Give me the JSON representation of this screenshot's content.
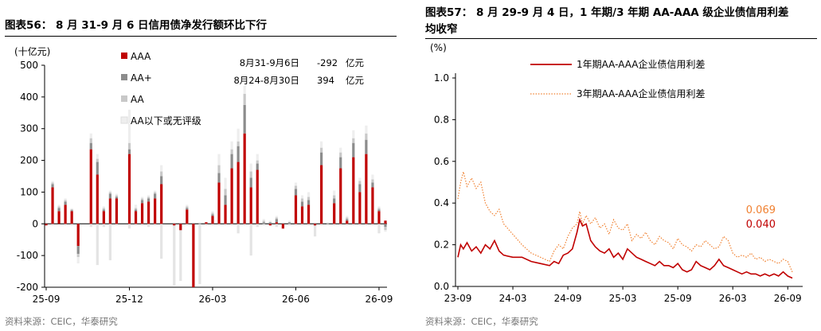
{
  "left": {
    "title": "图表56： 8 月 31-9 月 6 日信用债净发行额环比下行",
    "source": "资料来源：CEIC，华泰研究",
    "chart_data": {
      "type": "bar",
      "stacked": true,
      "y_unit": "(十亿元)",
      "ylim": [
        -200,
        500
      ],
      "yticks": [
        "500",
        "400",
        "300",
        "200",
        "100",
        "0",
        "-100",
        "-200"
      ],
      "ytick_values": [
        500,
        400,
        300,
        200,
        100,
        0,
        -100,
        -200
      ],
      "x_tick_labels": [
        "25-09",
        "25-12",
        "26-03",
        "26-06",
        "26-09"
      ],
      "x_tick_weeks": [
        0,
        13,
        26,
        39,
        52
      ],
      "legend": [
        {
          "name": "AAA",
          "color": "#c00000"
        },
        {
          "name": "AA+",
          "color": "#8c8c8c"
        },
        {
          "name": "AA",
          "color": "#c8c8c8"
        },
        {
          "name": "AA以下或无评级",
          "color": "#eeeeee"
        }
      ],
      "annotations": [
        {
          "period": "8月31-9月6日",
          "value": "-292",
          "unit": "亿元"
        },
        {
          "period": "8月24-8月30日",
          "value": "394",
          "unit": "亿元"
        }
      ],
      "series": [
        {
          "name": "AAA",
          "color": "#c00000",
          "values": [
            -5,
            115,
            40,
            60,
            40,
            -70,
            0,
            235,
            155,
            40,
            80,
            80,
            0,
            220,
            40,
            65,
            70,
            80,
            125,
            0,
            -5,
            -20,
            45,
            -200,
            0,
            5,
            25,
            130,
            60,
            175,
            195,
            285,
            115,
            170,
            0,
            -5,
            5,
            -15,
            0,
            90,
            55,
            60,
            -5,
            185,
            0,
            65,
            175,
            10,
            210,
            100,
            220,
            115,
            40,
            10
          ]
        },
        {
          "name": "AA+",
          "color": "#8c8c8c",
          "values": [
            0,
            10,
            10,
            10,
            3,
            -25,
            0,
            20,
            40,
            5,
            15,
            5,
            0,
            15,
            5,
            10,
            10,
            15,
            25,
            0,
            0,
            0,
            5,
            0,
            0,
            0,
            5,
            30,
            30,
            45,
            50,
            90,
            30,
            20,
            5,
            5,
            10,
            0,
            5,
            20,
            15,
            15,
            0,
            40,
            0,
            15,
            35,
            5,
            45,
            25,
            45,
            15,
            5,
            -10
          ]
        },
        {
          "name": "AA",
          "color": "#c8c8c8",
          "values": [
            0,
            5,
            5,
            5,
            3,
            -10,
            0,
            15,
            10,
            5,
            5,
            5,
            0,
            20,
            5,
            5,
            5,
            5,
            15,
            0,
            0,
            0,
            5,
            0,
            0,
            0,
            5,
            25,
            20,
            15,
            15,
            35,
            20,
            10,
            5,
            0,
            5,
            0,
            0,
            10,
            10,
            10,
            0,
            15,
            0,
            10,
            15,
            5,
            15,
            10,
            20,
            10,
            5,
            -10
          ]
        },
        {
          "name": "AA以下或无评级",
          "color": "#eeeeee",
          "values": [
            0,
            5,
            5,
            5,
            3,
            -20,
            0,
            15,
            15,
            5,
            5,
            5,
            0,
            105,
            10,
            5,
            5,
            5,
            20,
            0,
            0,
            0,
            5,
            0,
            0,
            0,
            5,
            35,
            35,
            25,
            40,
            25,
            25,
            20,
            5,
            5,
            5,
            0,
            5,
            10,
            10,
            15,
            0,
            20,
            0,
            15,
            15,
            5,
            25,
            10,
            25,
            15,
            5,
            -5
          ]
        }
      ],
      "neg_minor": {
        "name": "AA以下或无评级",
        "values": [
          0,
          -5,
          0,
          -5,
          -5,
          -25,
          0,
          -10,
          -130,
          -10,
          -115,
          -5,
          0,
          -15,
          -5,
          -5,
          -10,
          -5,
          -110,
          0,
          -195,
          -180,
          -5,
          -10,
          -190,
          -5,
          -5,
          -5,
          -5,
          -5,
          -30,
          -5,
          -100,
          -10,
          -5,
          -5,
          -10,
          -5,
          -5,
          -5,
          -5,
          -5,
          -40,
          -5,
          -5,
          -5,
          -5,
          -5,
          -5,
          -5,
          -5,
          -5,
          -30,
          -5
        ]
      }
    }
  },
  "right": {
    "title_line1": "图表57： 8 月 29-9 月 4 日，1 年期/3 年期 AA-AAA 级企业债信用利差",
    "title_line2": "均收窄",
    "source": "资料来源：CEIC，华泰研究",
    "chart_data": {
      "type": "line",
      "y_unit": "(%)",
      "ylim": [
        0.0,
        1.0
      ],
      "yticks": [
        "1.0",
        "0.8",
        "0.6",
        "0.4",
        "0.2",
        "0.0"
      ],
      "ytick_values": [
        1.0,
        0.8,
        0.6,
        0.4,
        0.2,
        0.0
      ],
      "x_tick_labels": [
        "23-09",
        "24-03",
        "24-09",
        "25-03",
        "25-09",
        "26-03",
        "26-09"
      ],
      "x_tick_months": [
        0,
        6,
        12,
        18,
        24,
        30,
        36
      ],
      "series": [
        {
          "name": "1年期AA-AAA企业债信用利差",
          "color": "#c00000",
          "style": "solid",
          "last_value": "0.040",
          "months": [
            0,
            0.3,
            0.6,
            1,
            1.5,
            2,
            2.5,
            3,
            3.5,
            4,
            4.5,
            5,
            6,
            7,
            8,
            9,
            10,
            10.5,
            11,
            11.5,
            12,
            12.5,
            13,
            13.3,
            13.6,
            14,
            14.5,
            15,
            15.5,
            16,
            16.5,
            17,
            17.5,
            18,
            18.5,
            19,
            19.5,
            20,
            20.5,
            21,
            21.5,
            22,
            22.5,
            23,
            23.5,
            24,
            24.5,
            25,
            25.5,
            26,
            26.5,
            27,
            27.5,
            28,
            28.5,
            29,
            29.5,
            30,
            30.5,
            31,
            31.5,
            32,
            32.5,
            33,
            33.5,
            34,
            34.5,
            35,
            35.5,
            36,
            36.5
          ],
          "values": [
            0.14,
            0.2,
            0.18,
            0.21,
            0.17,
            0.19,
            0.16,
            0.2,
            0.18,
            0.22,
            0.17,
            0.15,
            0.14,
            0.14,
            0.12,
            0.11,
            0.1,
            0.12,
            0.11,
            0.15,
            0.16,
            0.18,
            0.26,
            0.32,
            0.29,
            0.3,
            0.22,
            0.19,
            0.17,
            0.16,
            0.18,
            0.14,
            0.16,
            0.13,
            0.18,
            0.16,
            0.14,
            0.13,
            0.12,
            0.11,
            0.1,
            0.12,
            0.1,
            0.1,
            0.09,
            0.11,
            0.08,
            0.07,
            0.08,
            0.12,
            0.1,
            0.09,
            0.08,
            0.1,
            0.13,
            0.1,
            0.09,
            0.08,
            0.07,
            0.06,
            0.07,
            0.06,
            0.06,
            0.05,
            0.06,
            0.05,
            0.06,
            0.05,
            0.07,
            0.05,
            0.04
          ]
        },
        {
          "name": "3年期AA-AAA企业债信用利差",
          "color": "#f08030",
          "style": "dotted",
          "last_value": "0.069",
          "months": [
            0,
            0.3,
            0.6,
            1,
            1.5,
            2,
            2.5,
            3,
            3.5,
            4,
            4.5,
            5,
            6,
            7,
            8,
            9,
            10,
            10.5,
            11,
            11.5,
            12,
            12.5,
            13,
            13.3,
            13.6,
            14,
            14.5,
            15,
            15.5,
            16,
            16.5,
            17,
            17.5,
            18,
            18.5,
            19,
            19.5,
            20,
            20.5,
            21,
            21.5,
            22,
            22.5,
            23,
            23.5,
            24,
            24.5,
            25,
            25.5,
            26,
            26.5,
            27,
            27.5,
            28,
            28.5,
            29,
            29.5,
            30,
            30.5,
            31,
            31.5,
            32,
            32.5,
            33,
            33.5,
            34,
            34.5,
            35,
            35.5,
            36,
            36.5
          ],
          "values": [
            0.42,
            0.5,
            0.55,
            0.48,
            0.52,
            0.47,
            0.5,
            0.4,
            0.36,
            0.34,
            0.37,
            0.3,
            0.25,
            0.2,
            0.16,
            0.14,
            0.12,
            0.17,
            0.2,
            0.18,
            0.24,
            0.28,
            0.3,
            0.36,
            0.3,
            0.34,
            0.3,
            0.33,
            0.28,
            0.3,
            0.25,
            0.32,
            0.28,
            0.27,
            0.3,
            0.22,
            0.25,
            0.23,
            0.26,
            0.22,
            0.2,
            0.24,
            0.22,
            0.21,
            0.18,
            0.23,
            0.2,
            0.19,
            0.17,
            0.2,
            0.19,
            0.22,
            0.2,
            0.18,
            0.19,
            0.24,
            0.22,
            0.16,
            0.14,
            0.15,
            0.14,
            0.16,
            0.13,
            0.14,
            0.12,
            0.13,
            0.12,
            0.11,
            0.13,
            0.12,
            0.069
          ]
        }
      ]
    }
  }
}
